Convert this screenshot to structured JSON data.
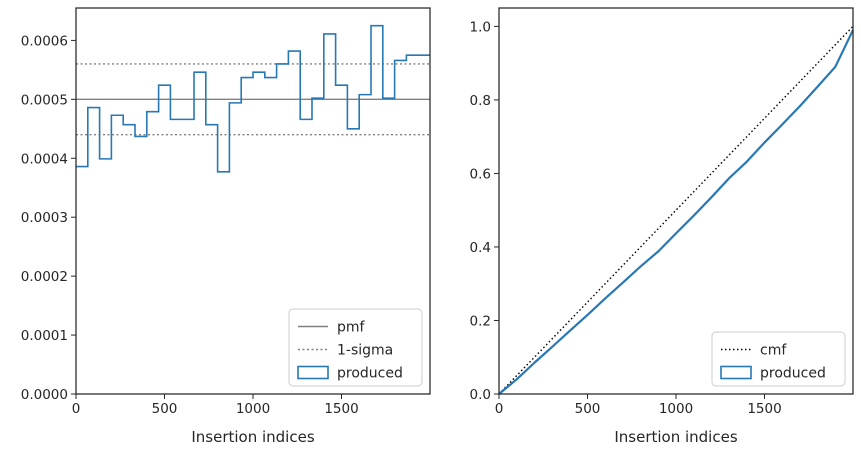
{
  "chart_data": [
    {
      "type": "histogram-step",
      "xlabel": "Insertion indices",
      "ylabel": "",
      "xlim": [
        0,
        2000
      ],
      "ylim": [
        0,
        0.000655
      ],
      "xticks": [
        0,
        500,
        1000,
        1500
      ],
      "xtick_labels": [
        "0",
        "500",
        "1000",
        "1500"
      ],
      "yticks": [
        0,
        0.0001,
        0.0002,
        0.0003,
        0.0004,
        0.0005,
        0.0006
      ],
      "ytick_labels": [
        "0.0000",
        "0.0001",
        "0.0002",
        "0.0003",
        "0.0004",
        "0.0005",
        "0.0006"
      ],
      "hlines": [
        {
          "name": "pmf",
          "y": 0.0005,
          "style": "solid",
          "color": "#808080"
        },
        {
          "name": "1-sigma",
          "y": 0.00056,
          "style": "dotted",
          "color": "#808080"
        },
        {
          "name": "1-sigma",
          "y": 0.00044,
          "style": "dotted",
          "color": "#808080"
        }
      ],
      "series": [
        {
          "name": "produced",
          "color": "#2878b5",
          "bin_edges": [
            0,
            66.7,
            133.3,
            200,
            266.7,
            333.3,
            400,
            466.7,
            533.3,
            600,
            666.7,
            733.3,
            800,
            866.7,
            933.3,
            1000,
            1066.7,
            1133.3,
            1200,
            1266.7,
            1333.3,
            1400,
            1466.7,
            1533.3,
            1600,
            1666.7,
            1733.3,
            1800,
            1866.7,
            1933.3,
            2000
          ],
          "values": [
            0.000386,
            0.000486,
            0.000399,
            0.000473,
            0.000457,
            0.000437,
            0.000479,
            0.000524,
            0.000466,
            0.000466,
            0.000546,
            0.000457,
            0.000377,
            0.000494,
            0.000537,
            0.000546,
            0.000537,
            0.00056,
            0.000582,
            0.000466,
            0.000502,
            0.000611,
            0.000524,
            0.00045,
            0.000508,
            0.000625,
            0.000502,
            0.000566,
            0.000575,
            0.000575
          ]
        }
      ],
      "legend": {
        "placement": "lower right",
        "entries": [
          "pmf",
          "1-sigma",
          "produced"
        ]
      },
      "grid": false
    },
    {
      "type": "line",
      "xlabel": "Insertion indices",
      "ylabel": "",
      "xlim": [
        0,
        2000
      ],
      "ylim": [
        0,
        1.05
      ],
      "xticks": [
        0,
        500,
        1000,
        1500
      ],
      "xtick_labels": [
        "0",
        "500",
        "1000",
        "1500"
      ],
      "yticks": [
        0,
        0.2,
        0.4,
        0.6,
        0.8,
        1.0
      ],
      "ytick_labels": [
        "0.0",
        "0.2",
        "0.4",
        "0.6",
        "0.8",
        "1.0"
      ],
      "series": [
        {
          "name": "cmf",
          "style": "dotted",
          "color": "#000000",
          "x": [
            0,
            2000
          ],
          "y": [
            0,
            1.0
          ]
        },
        {
          "name": "produced",
          "style": "step",
          "color": "#2878b5",
          "x": [
            0,
            100,
            200,
            300,
            400,
            500,
            600,
            700,
            800,
            900,
            1000,
            1100,
            1200,
            1300,
            1400,
            1500,
            1600,
            1700,
            1800,
            1900,
            2000
          ],
          "y": [
            0,
            0.04,
            0.085,
            0.128,
            0.172,
            0.215,
            0.26,
            0.303,
            0.347,
            0.388,
            0.437,
            0.485,
            0.535,
            0.587,
            0.632,
            0.684,
            0.733,
            0.783,
            0.836,
            0.89,
            0.99
          ]
        }
      ],
      "legend": {
        "placement": "lower right",
        "entries": [
          "cmf",
          "produced"
        ]
      },
      "grid": false
    }
  ]
}
